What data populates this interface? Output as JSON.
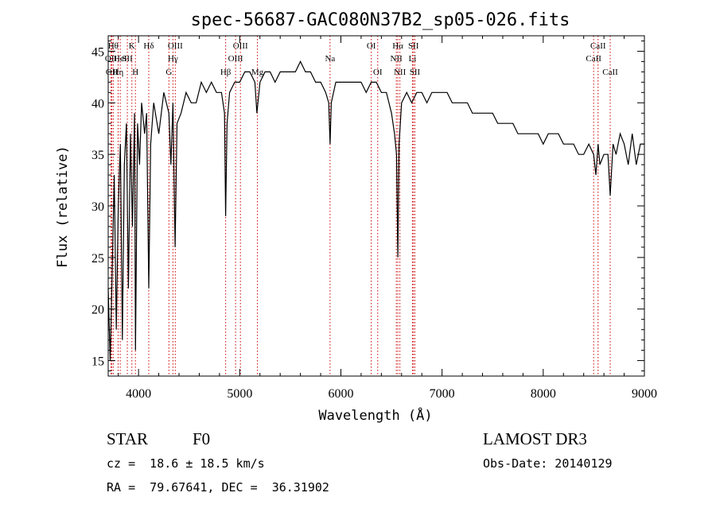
{
  "chart_data": {
    "type": "line",
    "title": "spec-56687-GAC080N37B2_sp05-026.fits",
    "xlabel": "Wavelength (Å)",
    "ylabel": "Flux (relative)",
    "xlim": [
      3700,
      9000
    ],
    "ylim": [
      13.5,
      46.5
    ],
    "xticks": [
      4000,
      5000,
      6000,
      7000,
      8000,
      9000
    ],
    "yticks": [
      15,
      20,
      25,
      30,
      35,
      40,
      45
    ],
    "series": [
      {
        "name": "flux",
        "x": [
          3700,
          3720,
          3740,
          3760,
          3780,
          3800,
          3820,
          3840,
          3860,
          3880,
          3900,
          3920,
          3940,
          3960,
          3970,
          3990,
          4010,
          4030,
          4060,
          4080,
          4101,
          4120,
          4150,
          4200,
          4250,
          4300,
          4320,
          4340,
          4361,
          4380,
          4420,
          4470,
          4520,
          4570,
          4620,
          4670,
          4720,
          4770,
          4820,
          4850,
          4861,
          4875,
          4900,
          4950,
          5000,
          5050,
          5100,
          5150,
          5170,
          5200,
          5250,
          5300,
          5350,
          5400,
          5450,
          5500,
          5550,
          5600,
          5650,
          5700,
          5750,
          5800,
          5850,
          5880,
          5893,
          5905,
          5950,
          6000,
          6050,
          6100,
          6150,
          6200,
          6250,
          6300,
          6350,
          6400,
          6450,
          6500,
          6530,
          6550,
          6563,
          6575,
          6600,
          6650,
          6700,
          6750,
          6800,
          6850,
          6900,
          6950,
          7000,
          7050,
          7100,
          7150,
          7200,
          7250,
          7300,
          7350,
          7400,
          7450,
          7500,
          7550,
          7600,
          7650,
          7700,
          7750,
          7800,
          7850,
          7900,
          7950,
          8000,
          8050,
          8100,
          8150,
          8200,
          8250,
          8300,
          8350,
          8400,
          8450,
          8498,
          8520,
          8542,
          8560,
          8600,
          8640,
          8662,
          8690,
          8720,
          8760,
          8800,
          8840,
          8880,
          8920,
          8960,
          9000
        ],
        "y": [
          22,
          15,
          24,
          33,
          18,
          30,
          36,
          17,
          34,
          38,
          22,
          37,
          28,
          39,
          16,
          38,
          34,
          40,
          37,
          39,
          22,
          36,
          40,
          37,
          41,
          39,
          34,
          40,
          26,
          38,
          39,
          41,
          40,
          40,
          42,
          41,
          42,
          41,
          41,
          39,
          29,
          38,
          41,
          42,
          42,
          43,
          43,
          42,
          39,
          42,
          43,
          43,
          42,
          43,
          43,
          43,
          43,
          44,
          43,
          43,
          42,
          42,
          41,
          40,
          36,
          40,
          42,
          42,
          42,
          42,
          42,
          42,
          41,
          42,
          42,
          41,
          41,
          39,
          37,
          35,
          25,
          36,
          40,
          41,
          40,
          41,
          41,
          40,
          41,
          41,
          41,
          41,
          40,
          40,
          40,
          40,
          39,
          39,
          39,
          39,
          39,
          38,
          38,
          38,
          38,
          37,
          37,
          37,
          37,
          37,
          36,
          37,
          37,
          37,
          36,
          36,
          36,
          35,
          35,
          36,
          35,
          33,
          36,
          34,
          35,
          35,
          31,
          36,
          35,
          37,
          36,
          34,
          37,
          34,
          36,
          36
        ]
      }
    ],
    "line_markers": [
      {
        "x": 3750,
        "label": "Hθ",
        "row": 0
      },
      {
        "x": 3728,
        "label": "OII",
        "row": 1
      },
      {
        "x": 3736,
        "label": "OII",
        "row": 2
      },
      {
        "x": 3798,
        "label": "Hη",
        "row": 2
      },
      {
        "x": 3819,
        "label": "HeI",
        "row": 1
      },
      {
        "x": 3889,
        "label": "SII",
        "row": 1
      },
      {
        "x": 3934,
        "label": "K",
        "row": 0
      },
      {
        "x": 3969,
        "label": "H",
        "row": 2
      },
      {
        "x": 4101,
        "label": "Hδ",
        "row": 0
      },
      {
        "x": 4300,
        "label": "G",
        "row": 2
      },
      {
        "x": 4340,
        "label": "Hγ",
        "row": 1
      },
      {
        "x": 4363,
        "label": "OIII",
        "row": 0
      },
      {
        "x": 4861,
        "label": "Hβ",
        "row": 2
      },
      {
        "x": 4959,
        "label": "OIII",
        "row": 1
      },
      {
        "x": 5007,
        "label": "OIII",
        "row": 0
      },
      {
        "x": 5175,
        "label": "Mg",
        "row": 2
      },
      {
        "x": 5893,
        "label": "Na",
        "row": 1
      },
      {
        "x": 6300,
        "label": "OI",
        "row": 0
      },
      {
        "x": 6364,
        "label": "OI",
        "row": 2
      },
      {
        "x": 6548,
        "label": "NII",
        "row": 1
      },
      {
        "x": 6563,
        "label": "Hα",
        "row": 0
      },
      {
        "x": 6583,
        "label": "NII",
        "row": 2
      },
      {
        "x": 6707,
        "label": "Li",
        "row": 1
      },
      {
        "x": 6717,
        "label": "SII",
        "row": 0
      },
      {
        "x": 6731,
        "label": "SII",
        "row": 2
      },
      {
        "x": 8498,
        "label": "CaII",
        "row": 1
      },
      {
        "x": 8542,
        "label": "CaII",
        "row": 0
      },
      {
        "x": 8662,
        "label": "CaII",
        "row": 2
      }
    ]
  },
  "info": {
    "object_class": "STAR",
    "subclass": "F0",
    "survey": "LAMOST DR3",
    "redshift": "cz =  18.6 ± 18.5 km/s",
    "obs_date": "Obs-Date: 20140129",
    "coords": "RA =  79.67641, DEC =  36.31902"
  },
  "colors": {
    "spectrum": "#000000",
    "marker": "#cc0000",
    "axes": "#000000",
    "background": "#ffffff"
  }
}
